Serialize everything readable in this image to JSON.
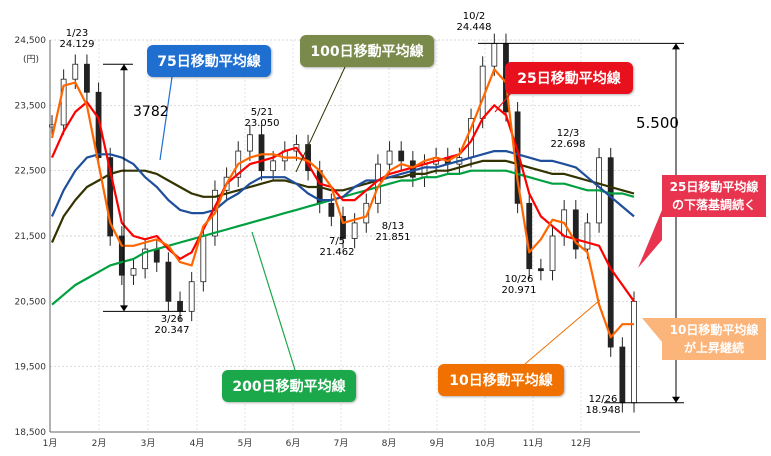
{
  "chart_data": {
    "type": "line",
    "y_unit": "(円)",
    "ylim": [
      18500,
      24500
    ],
    "y_ticks": [
      "24,500",
      "23,500",
      "22,500",
      "21,500",
      "20,500",
      "19,500",
      "18,500"
    ],
    "x_tick_labels": [
      "1月",
      "2月",
      "3月",
      "4月",
      "5月",
      "6月",
      "7月",
      "8月",
      "9月",
      "10月",
      "11月",
      "12月"
    ],
    "grid": true,
    "annotations": [
      {
        "date": "1/23",
        "value": "24.129"
      },
      {
        "date": "3/26",
        "value": "20.347"
      },
      {
        "date": "5/21",
        "value": "23.050"
      },
      {
        "date": "7/5",
        "value": "21.462"
      },
      {
        "date": "8/13",
        "value": "21.851"
      },
      {
        "date": "10/2",
        "value": "24.448"
      },
      {
        "date": "12/3",
        "value": "22.698"
      },
      {
        "date": "10/26",
        "value": "20.971"
      },
      {
        "date": "12/26",
        "value": "18.948"
      }
    ],
    "range_labels": [
      "3782",
      "5.500"
    ],
    "series": [
      {
        "name": "10日移動平均線",
        "color": "#ff6600",
        "values": [
          23000,
          23800,
          23850,
          23500,
          22600,
          21700,
          21350,
          21350,
          21400,
          21450,
          21350,
          21100,
          21050,
          21650,
          21850,
          22300,
          22600,
          22700,
          22750,
          22750,
          22700,
          22700,
          22650,
          22500,
          22250,
          21700,
          21750,
          21800,
          22250,
          22500,
          22600,
          22550,
          22650,
          22700,
          22650,
          22750,
          23150,
          23600,
          24050,
          23850,
          22350,
          21250,
          21450,
          21750,
          21700,
          21400,
          21250,
          20450,
          19950,
          20150,
          20150
        ]
      },
      {
        "name": "25日移動平均線",
        "color": "#ff0000",
        "values": [
          22700,
          23100,
          23400,
          23550,
          23300,
          22500,
          21700,
          21500,
          21450,
          21500,
          21300,
          21150,
          21250,
          21600,
          21950,
          22300,
          22450,
          22600,
          22650,
          22700,
          22800,
          22850,
          22600,
          22300,
          22250,
          22050,
          22050,
          22200,
          22350,
          22450,
          22500,
          22550,
          22600,
          22650,
          22700,
          22750,
          22950,
          23300,
          23500,
          23350,
          22800,
          22150,
          21800,
          21650,
          21500,
          21450,
          21400,
          21350,
          21000,
          20750,
          20500
        ]
      },
      {
        "name": "75日移動平均線",
        "color": "#1f4e9b",
        "values": [
          21800,
          22200,
          22500,
          22700,
          22750,
          22750,
          22700,
          22600,
          22400,
          22250,
          22050,
          21900,
          21850,
          21850,
          21900,
          22050,
          22150,
          22300,
          22400,
          22400,
          22400,
          22300,
          22150,
          22050,
          22050,
          22100,
          22250,
          22350,
          22350,
          22400,
          22450,
          22500,
          22550,
          22550,
          22600,
          22650,
          22700,
          22750,
          22800,
          22800,
          22750,
          22700,
          22650,
          22650,
          22600,
          22550,
          22400,
          22250,
          22100,
          21950,
          21800
        ]
      },
      {
        "name": "100日移動平均線",
        "color": "#333300",
        "values": [
          21400,
          21800,
          22050,
          22250,
          22350,
          22450,
          22500,
          22500,
          22500,
          22450,
          22350,
          22250,
          22150,
          22100,
          22100,
          22150,
          22200,
          22250,
          22300,
          22350,
          22350,
          22300,
          22250,
          22250,
          22200,
          22200,
          22250,
          22300,
          22350,
          22400,
          22400,
          22450,
          22450,
          22500,
          22500,
          22550,
          22600,
          22650,
          22650,
          22650,
          22600,
          22550,
          22500,
          22450,
          22450,
          22400,
          22350,
          22300,
          22250,
          22200,
          22150
        ]
      },
      {
        "name": "200日移動平均線",
        "color": "#00a040",
        "values": [
          20450,
          20600,
          20750,
          20850,
          20950,
          21050,
          21100,
          21150,
          21250,
          21300,
          21350,
          21400,
          21450,
          21500,
          21550,
          21600,
          21650,
          21700,
          21750,
          21800,
          21850,
          21900,
          21950,
          22000,
          22050,
          22100,
          22150,
          22200,
          22250,
          22300,
          22350,
          22350,
          22400,
          22400,
          22450,
          22450,
          22500,
          22500,
          22500,
          22500,
          22450,
          22400,
          22350,
          22300,
          22300,
          22250,
          22200,
          22200,
          22150,
          22150,
          22100
        ]
      }
    ],
    "price_values": [
      23200,
      23900,
      24129,
      23700,
      22700,
      21500,
      20900,
      21000,
      21300,
      21100,
      20500,
      20347,
      20800,
      21500,
      22200,
      22400,
      22800,
      23050,
      22500,
      22650,
      22800,
      22900,
      22500,
      22000,
      21800,
      21462,
      21700,
      22000,
      22600,
      22800,
      22650,
      22400,
      22600,
      22700,
      22600,
      22700,
      23300,
      24100,
      24448,
      23400,
      22000,
      21000,
      20971,
      21500,
      21900,
      21300,
      21700,
      22698,
      19800,
      18948,
      20500
    ]
  },
  "callouts": {
    "ma75": "75日移動平均線",
    "ma100": "100日移動平均線",
    "ma25": "25日移動平均線",
    "ma200": "200日移動平均線",
    "ma10": "10日移動平均線",
    "note_red": "25日移動平均線の下落基調続く",
    "note_orange": "10日移動平均線が上昇継続"
  },
  "colors": {
    "ma75_box": "#1f6fd1",
    "ma100_box": "#7a8a4a",
    "ma25_box": "#e8101c",
    "ma200_box": "#1aa84a",
    "ma10_box": "#f07000",
    "note_red_box": "#e8344e",
    "note_orange_box": "#fbb47a"
  }
}
